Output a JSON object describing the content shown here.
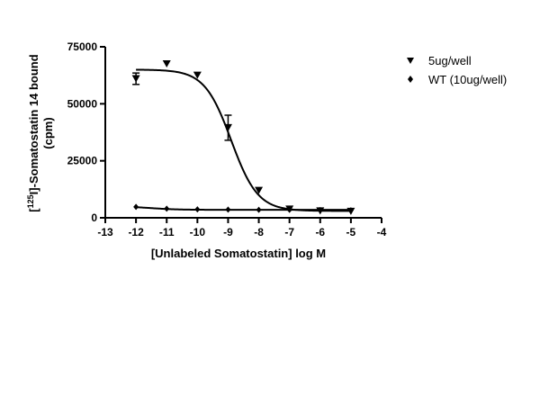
{
  "chart_data": {
    "type": "scatter",
    "xlabel": "[Unlabeled Somatostatin] log M",
    "ylabel_prefix": "[",
    "ylabel_superscript": "125",
    "ylabel_main": "I]-Somatostatin 14 bound",
    "ylabel_unit": "(cpm)",
    "xlim": [
      -13,
      -4
    ],
    "ylim": [
      0,
      75000
    ],
    "x_ticks": [
      -13,
      -12,
      -11,
      -10,
      -9,
      -8,
      -7,
      -6,
      -5,
      -4
    ],
    "y_ticks": [
      0,
      25000,
      50000,
      75000
    ],
    "x_tick_labels": [
      "-13",
      "-12",
      "-11",
      "-10",
      "-9",
      "-8",
      "-7",
      "-6",
      "-5",
      "-4"
    ],
    "y_tick_labels": [
      "0",
      "25000",
      "50000",
      "75000"
    ],
    "legend_position": "top-right",
    "series": [
      {
        "name": "5ug/well",
        "marker": "triangle-down",
        "color": "#000000",
        "x": [
          -12,
          -11,
          -10,
          -9,
          -8,
          -7,
          -6,
          -5
        ],
        "y": [
          61000,
          67500,
          62500,
          39500,
          12000,
          3800,
          3000,
          2800
        ],
        "error": [
          2500,
          0,
          0,
          5500,
          0,
          0,
          0,
          0
        ],
        "fit": {
          "top": 65000,
          "bottom": 3000,
          "logEC50": -8.9,
          "hill": -1.0
        }
      },
      {
        "name": "WT (10ug/well)",
        "marker": "diamond",
        "color": "#000000",
        "x": [
          -12,
          -11,
          -10,
          -9,
          -8,
          -7,
          -6,
          -5
        ],
        "y": [
          4800,
          4000,
          3700,
          3600,
          3500,
          3500,
          3400,
          3300
        ],
        "error": [
          0,
          0,
          0,
          0,
          0,
          0,
          0,
          0
        ],
        "fit": {
          "top": 5000,
          "bottom": 3500,
          "logEC50": -11.5,
          "hill": -1.0
        }
      }
    ]
  }
}
